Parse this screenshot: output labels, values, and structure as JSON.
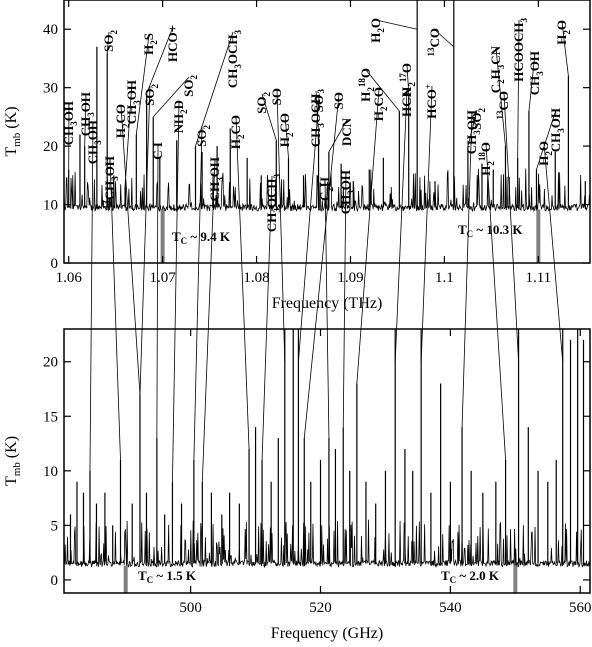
{
  "chart_data": [
    {
      "type": "line",
      "xlabel": "Frequency (THz)",
      "ylabel": "T",
      "ylabel_sub": "mb",
      "ylabel_unit": " (K)",
      "xlim": [
        1.0595,
        1.1155
      ],
      "ylim": [
        0,
        45
      ],
      "xticks": [
        1.06,
        1.07,
        1.08,
        1.09,
        1.1,
        1.11
      ],
      "xtick_labels": [
        "1.06",
        "1.07",
        "1.08",
        "1.09",
        "1.1",
        "1.11"
      ],
      "yticks": [
        0,
        10,
        20,
        30,
        40
      ],
      "continuum_level": 9.5,
      "baseline_ripple": 0.6,
      "continuum_labels": [
        {
          "text": "T",
          "sub": "C",
          "rest": " ~ 9.4 K",
          "x": 1.07
        },
        {
          "text": "T",
          "sub": "C",
          "rest": " ~ 10.3 K",
          "x": 1.11
        }
      ],
      "peaks": [
        {
          "x": 1.06,
          "y": 16
        },
        {
          "x": 1.0612,
          "y": 22
        },
        {
          "x": 1.0617,
          "y": 20
        },
        {
          "x": 1.063,
          "y": 37
        },
        {
          "x": 1.0641,
          "y": 36
        },
        {
          "x": 1.0648,
          "y": 15
        },
        {
          "x": 1.066,
          "y": 13
        },
        {
          "x": 1.0672,
          "y": 22
        },
        {
          "x": 1.0683,
          "y": 29
        },
        {
          "x": 1.069,
          "y": 25
        },
        {
          "x": 1.0697,
          "y": 18
        },
        {
          "x": 1.0715,
          "y": 21
        },
        {
          "x": 1.0735,
          "y": 20
        },
        {
          "x": 1.0742,
          "y": 19
        },
        {
          "x": 1.0758,
          "y": 20
        },
        {
          "x": 1.0772,
          "y": 23
        },
        {
          "x": 1.079,
          "y": 18
        },
        {
          "x": 1.0805,
          "y": 15
        },
        {
          "x": 1.0821,
          "y": 21
        },
        {
          "x": 1.0834,
          "y": 18
        },
        {
          "x": 1.085,
          "y": 15
        },
        {
          "x": 1.0866,
          "y": 22
        },
        {
          "x": 1.0877,
          "y": 19
        },
        {
          "x": 1.089,
          "y": 17
        },
        {
          "x": 1.0903,
          "y": 14
        },
        {
          "x": 1.092,
          "y": 16
        },
        {
          "x": 1.0935,
          "y": 18
        },
        {
          "x": 1.0952,
          "y": 26
        },
        {
          "x": 1.0962,
          "y": 29
        },
        {
          "x": 1.0971,
          "y": 45
        },
        {
          "x": 1.099,
          "y": 14
        },
        {
          "x": 1.101,
          "y": 45
        },
        {
          "x": 1.1025,
          "y": 20
        },
        {
          "x": 1.104,
          "y": 17
        },
        {
          "x": 1.1052,
          "y": 16
        },
        {
          "x": 1.1065,
          "y": 20
        },
        {
          "x": 1.1078,
          "y": 18
        },
        {
          "x": 1.109,
          "y": 26
        },
        {
          "x": 1.1098,
          "y": 16
        },
        {
          "x": 1.1118,
          "y": 19
        },
        {
          "x": 1.1132,
          "y": 32
        },
        {
          "x": 1.115,
          "y": 14
        }
      ],
      "species_labels": [
        {
          "parts": [
            [
              "CH",
              0
            ],
            [
              "3",
              -1
            ],
            [
              "OH",
              0
            ]
          ],
          "angle": -90
        },
        {
          "parts": [
            [
              "CH",
              0
            ],
            [
              "3",
              -1
            ],
            [
              "OH",
              0
            ]
          ],
          "angle": -90
        },
        {
          "parts": [
            [
              "SO",
              0
            ],
            [
              "2",
              -1
            ]
          ],
          "angle": -90
        },
        {
          "parts": [
            [
              "CH",
              0
            ],
            [
              "3",
              -1
            ],
            [
              "OH",
              0
            ]
          ],
          "angle": -90
        },
        {
          "parts": [
            [
              "H",
              0
            ],
            [
              "2",
              -1
            ],
            [
              "S",
              0
            ]
          ],
          "angle": -90
        },
        {
          "parts": [
            [
              "HCO+",
              0
            ]
          ],
          "angle": -90
        },
        {
          "parts": [
            [
              "SO",
              0
            ],
            [
              "2",
              -1
            ]
          ],
          "angle": -90
        },
        {
          "parts": [
            [
              "CH",
              0
            ],
            [
              "3",
              -1
            ],
            [
              "OCH",
              0
            ],
            [
              "3",
              -1
            ]
          ],
          "angle": -90
        },
        {
          "parts": [
            [
              "SO",
              0
            ],
            [
              "2",
              -1
            ]
          ],
          "angle": -90
        },
        {
          "parts": [
            [
              "H",
              0
            ],
            [
              "2",
              -1
            ],
            [
              "CO",
              0
            ]
          ],
          "angle": -90
        },
        {
          "parts": [
            [
              "CH",
              0
            ],
            [
              "3",
              -1
            ],
            [
              "OCH",
              0
            ],
            [
              "3",
              -1
            ]
          ],
          "angle": -90
        },
        {
          "parts": [
            [
              "DCN",
              0
            ]
          ],
          "angle": -90
        },
        {
          "parts": [
            [
              "H",
              0
            ],
            [
              "2",
              -1
            ],
            [
              "18",
              1
            ],
            [
              "O",
              0
            ]
          ],
          "angle": -90
        },
        {
          "parts": [
            [
              "H",
              0
            ],
            [
              "2",
              -1
            ],
            [
              "O",
              0
            ]
          ],
          "angle": -90
        },
        {
          "parts": [
            [
              "H",
              0
            ],
            [
              "2",
              -1
            ],
            [
              "17",
              1
            ],
            [
              "O",
              0
            ]
          ],
          "angle": -90
        },
        {
          "parts": [
            [
              "13",
              1
            ],
            [
              "CO",
              0
            ]
          ],
          "angle": -90
        },
        {
          "parts": [
            [
              "SO",
              0
            ],
            [
              "2",
              -1
            ]
          ],
          "angle": -90
        },
        {
          "parts": [
            [
              "C",
              0
            ],
            [
              "2",
              -1
            ],
            [
              "H",
              0
            ],
            [
              "3",
              -1
            ],
            [
              "CN",
              0
            ]
          ],
          "angle": -90
        },
        {
          "parts": [
            [
              "HCOOCH",
              0
            ],
            [
              "3",
              -1
            ]
          ],
          "angle": -90
        },
        {
          "parts": [
            [
              "CH",
              0
            ],
            [
              "3",
              -1
            ],
            [
              "OH",
              0
            ]
          ],
          "angle": -90
        },
        {
          "parts": [
            [
              "H",
              0
            ],
            [
              "2",
              -1
            ],
            [
              "O",
              0
            ]
          ],
          "angle": -90
        },
        {
          "parts": [
            [
              "CH",
              0
            ],
            [
              "3",
              -1
            ],
            [
              "OH",
              0
            ]
          ],
          "angle": -90
        }
      ]
    },
    {
      "type": "line",
      "xlabel": "Frequency (GHz)",
      "ylabel": "T",
      "ylabel_sub": "mb",
      "ylabel_unit": " (K)",
      "xlim": [
        480.5,
        561.5
      ],
      "ylim": [
        -1.2,
        23
      ],
      "xticks": [
        500,
        520,
        540,
        560
      ],
      "xtick_labels": [
        "500",
        "520",
        "540",
        "560"
      ],
      "yticks": [
        0,
        5,
        10,
        15,
        20
      ],
      "continuum_level": 1.5,
      "baseline_ripple": 0.3,
      "continuum_labels": [
        {
          "text": "T",
          "sub": "C",
          "rest": " ~ 1.5 K",
          "x": 490
        },
        {
          "text": "T",
          "sub": "C",
          "rest": " ~ 2.0 K",
          "x": 550
        }
      ],
      "peaks": [
        {
          "x": 481.5,
          "y": 6
        },
        {
          "x": 482.5,
          "y": 9
        },
        {
          "x": 483.5,
          "y": 8
        },
        {
          "x": 484.5,
          "y": 10
        },
        {
          "x": 485.5,
          "y": 7
        },
        {
          "x": 486.8,
          "y": 8
        },
        {
          "x": 488.0,
          "y": 5
        },
        {
          "x": 489.2,
          "y": 11
        },
        {
          "x": 491.0,
          "y": 7
        },
        {
          "x": 492.2,
          "y": 17
        },
        {
          "x": 493.2,
          "y": 8
        },
        {
          "x": 494.8,
          "y": 13
        },
        {
          "x": 496.0,
          "y": 6
        },
        {
          "x": 497.2,
          "y": 9
        },
        {
          "x": 498.6,
          "y": 7
        },
        {
          "x": 500.5,
          "y": 11
        },
        {
          "x": 501.8,
          "y": 9
        },
        {
          "x": 503.2,
          "y": 8
        },
        {
          "x": 504.8,
          "y": 6
        },
        {
          "x": 506.0,
          "y": 8
        },
        {
          "x": 507.5,
          "y": 7
        },
        {
          "x": 509.0,
          "y": 12
        },
        {
          "x": 510.0,
          "y": 14
        },
        {
          "x": 511.0,
          "y": 11
        },
        {
          "x": 512.4,
          "y": 9
        },
        {
          "x": 513.5,
          "y": 13
        },
        {
          "x": 514.5,
          "y": 23
        },
        {
          "x": 515.8,
          "y": 23
        },
        {
          "x": 516.6,
          "y": 23
        },
        {
          "x": 517.5,
          "y": 13
        },
        {
          "x": 518.5,
          "y": 9
        },
        {
          "x": 520.0,
          "y": 11
        },
        {
          "x": 521.3,
          "y": 13
        },
        {
          "x": 522.3,
          "y": 12
        },
        {
          "x": 523.5,
          "y": 14
        },
        {
          "x": 524.5,
          "y": 10
        },
        {
          "x": 525.6,
          "y": 18
        },
        {
          "x": 527.0,
          "y": 9
        },
        {
          "x": 528.5,
          "y": 7
        },
        {
          "x": 530.0,
          "y": 10
        },
        {
          "x": 531.5,
          "y": 23
        },
        {
          "x": 533.0,
          "y": 12
        },
        {
          "x": 534.2,
          "y": 10
        },
        {
          "x": 535.5,
          "y": 23
        },
        {
          "x": 537.0,
          "y": 8
        },
        {
          "x": 538.5,
          "y": 18
        },
        {
          "x": 540.0,
          "y": 9
        },
        {
          "x": 541.8,
          "y": 14
        },
        {
          "x": 543.2,
          "y": 10
        },
        {
          "x": 545.0,
          "y": 8
        },
        {
          "x": 547.0,
          "y": 9
        },
        {
          "x": 548.5,
          "y": 11
        },
        {
          "x": 550.5,
          "y": 23
        },
        {
          "x": 552.0,
          "y": 14
        },
        {
          "x": 553.5,
          "y": 10
        },
        {
          "x": 555.0,
          "y": 9
        },
        {
          "x": 556.3,
          "y": 11
        },
        {
          "x": 557.3,
          "y": 23
        },
        {
          "x": 558.5,
          "y": 22
        },
        {
          "x": 559.6,
          "y": 23
        },
        {
          "x": 560.5,
          "y": 22
        }
      ],
      "species_labels": [
        {
          "parts": [
            [
              "CH",
              0
            ],
            [
              "3",
              -1
            ],
            [
              "OH",
              0
            ]
          ],
          "angle": -90
        },
        {
          "parts": [
            [
              "13",
              1
            ],
            [
              "CH",
              0
            ],
            [
              "3",
              -1
            ],
            [
              "OH",
              0
            ]
          ],
          "angle": -90
        },
        {
          "parts": [
            [
              "H",
              0
            ],
            [
              "2",
              -1
            ],
            [
              "CO",
              0
            ]
          ],
          "angle": -90
        },
        {
          "parts": [
            [
              "SO",
              0
            ],
            [
              "2",
              -1
            ]
          ],
          "angle": -90
        },
        {
          "parts": [
            [
              "C I",
              0
            ]
          ],
          "angle": -90
        },
        {
          "parts": [
            [
              "NH",
              0
            ],
            [
              "2",
              -1
            ],
            [
              "D",
              0
            ]
          ],
          "angle": -90
        },
        {
          "parts": [
            [
              "SO",
              0
            ],
            [
              "2",
              -1
            ]
          ],
          "angle": -90
        },
        {
          "parts": [
            [
              "CH",
              0
            ],
            [
              "3",
              -1
            ],
            [
              "OH",
              0
            ]
          ],
          "angle": -90
        },
        {
          "parts": [
            [
              "H",
              0
            ],
            [
              "2",
              -1
            ],
            [
              "CO",
              0
            ]
          ],
          "angle": -90
        },
        {
          "parts": [
            [
              "CH",
              0
            ],
            [
              "3",
              -1
            ],
            [
              "OCH",
              0
            ],
            [
              "3",
              -1
            ]
          ],
          "angle": -90
        },
        {
          "parts": [
            [
              "SO",
              0
            ]
          ],
          "angle": -90
        },
        {
          "parts": [
            [
              "SO",
              0
            ]
          ],
          "angle": -90
        },
        {
          "parts": [
            [
              "C",
              0
            ],
            [
              "2",
              -1
            ],
            [
              "H",
              0
            ]
          ],
          "angle": -90
        },
        {
          "parts": [
            [
              "SO",
              0
            ]
          ],
          "angle": -90
        },
        {
          "parts": [
            [
              "CH",
              0
            ],
            [
              "3",
              -1
            ],
            [
              "OH",
              0
            ]
          ],
          "angle": -90
        },
        {
          "parts": [
            [
              "H",
              0
            ],
            [
              "2",
              -1
            ],
            [
              "CO",
              0
            ]
          ],
          "angle": -90
        },
        {
          "parts": [
            [
              "HCN",
              0
            ]
          ],
          "angle": -90
        },
        {
          "parts": [
            [
              "HCO",
              0
            ],
            [
              "+",
              1
            ]
          ],
          "angle": -90
        },
        {
          "parts": [
            [
              "CH",
              0
            ],
            [
              "3",
              -1
            ],
            [
              "OH",
              0
            ]
          ],
          "angle": -90
        },
        {
          "parts": [
            [
              "H",
              0
            ],
            [
              "2",
              -1
            ],
            [
              "18",
              1
            ],
            [
              "O",
              0
            ]
          ],
          "angle": -90
        },
        {
          "parts": [
            [
              "13",
              1
            ],
            [
              "CO",
              0
            ]
          ],
          "angle": -90
        },
        {
          "parts": [
            [
              "H",
              0
            ],
            [
              "2",
              -1
            ],
            [
              "O",
              0
            ]
          ],
          "angle": -90
        }
      ]
    }
  ]
}
